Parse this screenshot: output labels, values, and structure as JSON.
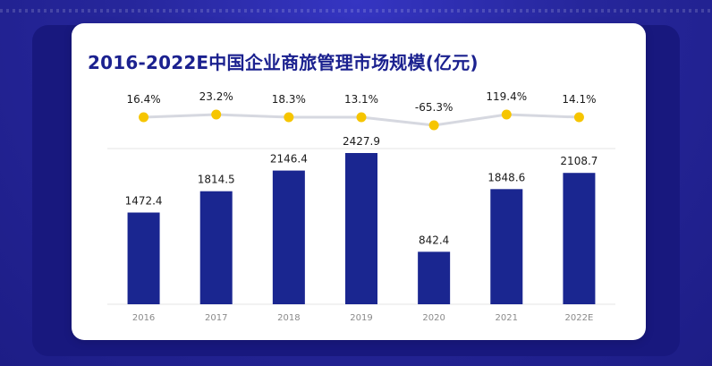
{
  "colors": {
    "background": "#2a2aa6",
    "card": "#ffffff",
    "title": "#1b218f",
    "bar": "#1a2690",
    "growth_line": "#d6d8e0",
    "growth_dot": "#f6c500",
    "label": "#1a1a1a",
    "tick": "#8a8a8a",
    "grid": "#e6e6e6"
  },
  "chart_data": {
    "type": "bar",
    "title": "2016-2022E中国企业商旅管理市场规模(亿元)",
    "xlabel": "",
    "ylabel": "",
    "categories": [
      "2016",
      "2017",
      "2018",
      "2019",
      "2020",
      "2021",
      "2022E"
    ],
    "values": [
      1472.4,
      1814.5,
      2146.4,
      2427.9,
      842.4,
      1848.6,
      2108.7
    ],
    "value_labels": [
      "1472.4",
      "1814.5",
      "2146.4",
      "2427.9",
      "842.4",
      "1848.6",
      "2108.7"
    ],
    "ylim": [
      0,
      2500
    ],
    "grid": true,
    "legend": "none",
    "growth_rate": {
      "type": "line",
      "values": [
        16.4,
        23.2,
        18.3,
        13.1,
        -65.3,
        119.4,
        14.1
      ],
      "labels": [
        "16.4%",
        "23.2%",
        "18.3%",
        "13.1%",
        "-65.3%",
        "119.4%",
        "14.1%"
      ]
    }
  }
}
